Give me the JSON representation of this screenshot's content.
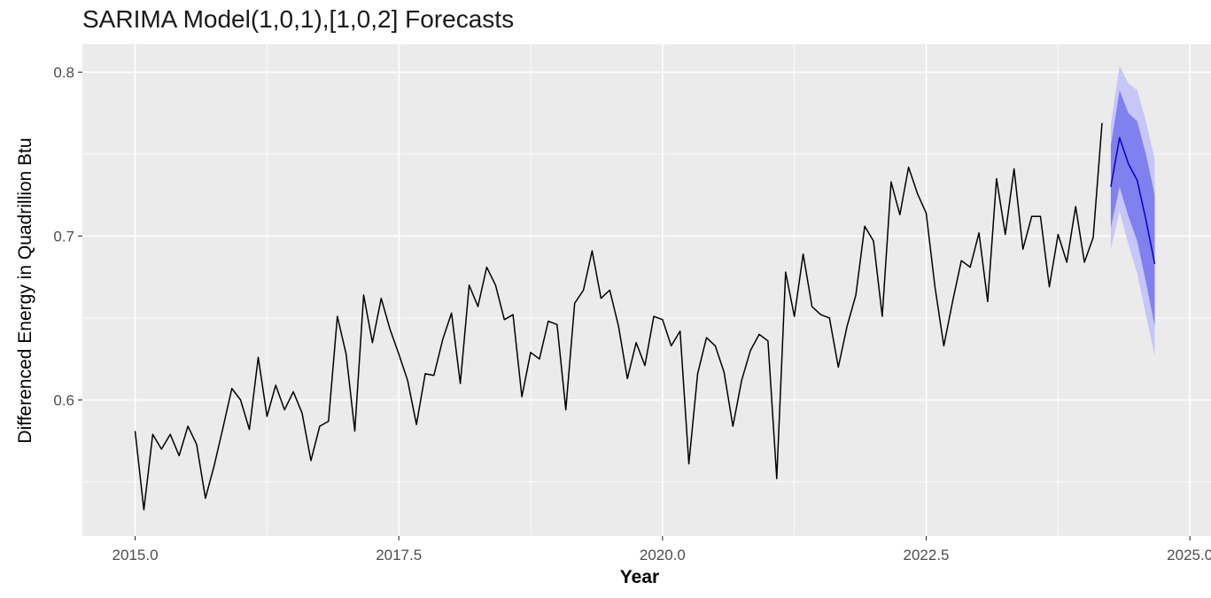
{
  "chart_data": {
    "type": "line",
    "title": "SARIMA Model(1,0,1),[1,0,2] Forecasts",
    "xlabel": "Year",
    "ylabel": "Differenced Energy in Quadrillion Btu",
    "xlim": [
      2014.5,
      2025.2
    ],
    "ylim": [
      0.517,
      0.817
    ],
    "x_ticks": [
      2015,
      2017.5,
      2020,
      2022.5,
      2025
    ],
    "x_tick_labels": [
      "2015.0",
      "2017.5",
      "2020.0",
      "2022.5",
      "2025.0"
    ],
    "y_ticks": [
      0.6,
      0.7,
      0.8
    ],
    "y_tick_labels": [
      "0.6",
      "0.7",
      "0.8"
    ],
    "grid": true,
    "legend": "none",
    "series": [
      {
        "kind": "history",
        "color": "#000000",
        "x": [
          2015.0,
          2015.083,
          2015.167,
          2015.25,
          2015.333,
          2015.417,
          2015.5,
          2015.583,
          2015.667,
          2015.75,
          2015.833,
          2015.917,
          2016.0,
          2016.083,
          2016.167,
          2016.25,
          2016.333,
          2016.417,
          2016.5,
          2016.583,
          2016.667,
          2016.75,
          2016.833,
          2016.917,
          2017.0,
          2017.083,
          2017.167,
          2017.25,
          2017.333,
          2017.417,
          2017.5,
          2017.583,
          2017.667,
          2017.75,
          2017.833,
          2017.917,
          2018.0,
          2018.083,
          2018.167,
          2018.25,
          2018.333,
          2018.417,
          2018.5,
          2018.583,
          2018.667,
          2018.75,
          2018.833,
          2018.917,
          2019.0,
          2019.083,
          2019.167,
          2019.25,
          2019.333,
          2019.417,
          2019.5,
          2019.583,
          2019.667,
          2019.75,
          2019.833,
          2019.917,
          2020.0,
          2020.083,
          2020.167,
          2020.25,
          2020.333,
          2020.417,
          2020.5,
          2020.583,
          2020.667,
          2020.75,
          2020.833,
          2020.917,
          2021.0,
          2021.083,
          2021.167,
          2021.25,
          2021.333,
          2021.417,
          2021.5,
          2021.583,
          2021.667,
          2021.75,
          2021.833,
          2021.917,
          2022.0,
          2022.083,
          2022.167,
          2022.25,
          2022.333,
          2022.417,
          2022.5,
          2022.583,
          2022.667,
          2022.75,
          2022.833,
          2022.917,
          2023.0,
          2023.083,
          2023.167,
          2023.25,
          2023.333,
          2023.417,
          2023.5,
          2023.583,
          2023.667,
          2023.75,
          2023.833,
          2023.917,
          2024.0,
          2024.083,
          2024.167
        ],
        "y": [
          0.581,
          0.533,
          0.579,
          0.57,
          0.579,
          0.566,
          0.584,
          0.573,
          0.54,
          0.56,
          0.583,
          0.607,
          0.6,
          0.582,
          0.626,
          0.59,
          0.609,
          0.594,
          0.605,
          0.592,
          0.563,
          0.584,
          0.587,
          0.651,
          0.628,
          0.581,
          0.664,
          0.635,
          0.662,
          0.643,
          0.628,
          0.612,
          0.585,
          0.616,
          0.615,
          0.637,
          0.653,
          0.61,
          0.67,
          0.657,
          0.681,
          0.67,
          0.649,
          0.652,
          0.602,
          0.629,
          0.625,
          0.648,
          0.646,
          0.594,
          0.659,
          0.667,
          0.691,
          0.662,
          0.667,
          0.645,
          0.613,
          0.635,
          0.621,
          0.651,
          0.649,
          0.633,
          0.642,
          0.561,
          0.616,
          0.638,
          0.633,
          0.617,
          0.584,
          0.612,
          0.63,
          0.64,
          0.636,
          0.552,
          0.678,
          0.651,
          0.689,
          0.657,
          0.652,
          0.65,
          0.62,
          0.645,
          0.664,
          0.706,
          0.697,
          0.651,
          0.733,
          0.713,
          0.742,
          0.726,
          0.714,
          0.669,
          0.633,
          0.66,
          0.685,
          0.681,
          0.702,
          0.66,
          0.735,
          0.701,
          0.741,
          0.692,
          0.712,
          0.712,
          0.669,
          0.701,
          0.684,
          0.718,
          0.684,
          0.699,
          0.769
        ]
      },
      {
        "kind": "forecast",
        "color": "#0000cc",
        "x": [
          2024.25,
          2024.333,
          2024.417,
          2024.5,
          2024.583,
          2024.667
        ],
        "y": [
          0.73,
          0.76,
          0.744,
          0.734,
          0.71,
          0.683
        ]
      }
    ],
    "intervals": [
      {
        "level": "outer",
        "color": "#c6c6f7",
        "x": [
          2024.25,
          2024.333,
          2024.417,
          2024.5,
          2024.583,
          2024.667
        ],
        "lower": [
          0.692,
          0.715,
          0.695,
          0.677,
          0.652,
          0.627
        ],
        "upper": [
          0.768,
          0.804,
          0.793,
          0.789,
          0.77,
          0.747
        ]
      },
      {
        "level": "inner",
        "color": "#8080ee",
        "x": [
          2024.25,
          2024.333,
          2024.417,
          2024.5,
          2024.583,
          2024.667
        ],
        "lower": [
          0.705,
          0.73,
          0.712,
          0.697,
          0.672,
          0.645
        ],
        "upper": [
          0.755,
          0.789,
          0.775,
          0.77,
          0.75,
          0.725
        ]
      }
    ]
  }
}
